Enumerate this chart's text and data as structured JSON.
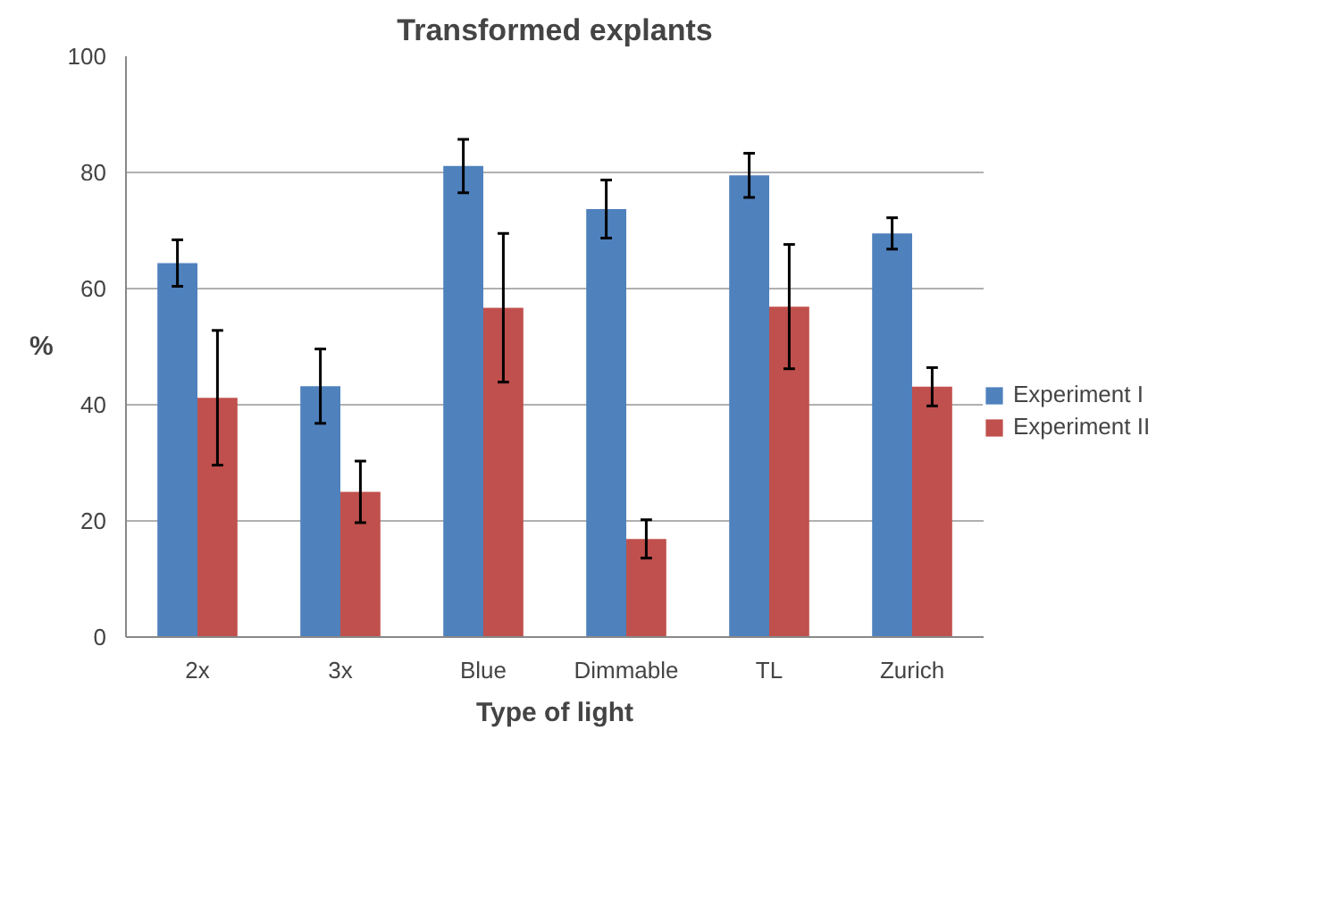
{
  "chart_data": {
    "type": "bar",
    "title": "Transformed explants",
    "xlabel": "Type of light",
    "ylabel": "%",
    "categories": [
      "2x",
      "3x",
      "Blue",
      "Dimmable",
      "TL",
      "Zurich"
    ],
    "series": [
      {
        "name": "Experiment I",
        "color": "#4f81bd",
        "values": [
          64.4,
          43.2,
          81.1,
          73.7,
          79.5,
          69.5
        ],
        "errors": [
          4,
          6.4,
          4.6,
          5,
          3.8,
          2.7
        ]
      },
      {
        "name": "Experiment II",
        "color": "#c0504d",
        "values": [
          41.2,
          25.0,
          56.7,
          16.9,
          56.9,
          43.1
        ],
        "errors": [
          11.6,
          5.3,
          12.8,
          3.3,
          10.7,
          3.3
        ]
      }
    ],
    "ylim": [
      0,
      100
    ],
    "yticks": [
      0,
      20,
      40,
      60,
      80,
      100
    ],
    "grid": "y",
    "legend": "right"
  }
}
